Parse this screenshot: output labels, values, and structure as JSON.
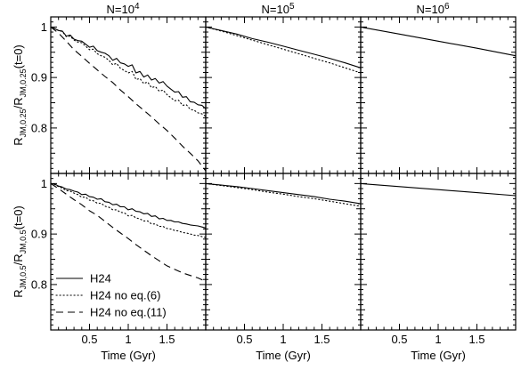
{
  "chart_data": {
    "type": "line",
    "columns": [
      {
        "title_base": "N=10",
        "title_exp": "4"
      },
      {
        "title_base": "N=10",
        "title_exp": "5"
      },
      {
        "title_base": "N=10",
        "title_exp": "6"
      }
    ],
    "rows": [
      {
        "ylabel": {
          "r": "R",
          "sub1": "JM,0.25",
          "slash": "/R",
          "sub2": "JM,0.25",
          "tail": "(t=0)"
        },
        "ylim": [
          0.71,
          1.02
        ],
        "yticks": [
          0.8,
          0.9,
          1
        ],
        "ytick_labels": [
          "0.8",
          "0.9",
          "1"
        ]
      },
      {
        "ylabel": {
          "r": "R",
          "sub1": "JM,0.5",
          "slash": "/R",
          "sub2": "JM,0.5",
          "tail": "(t=0)"
        },
        "ylim": [
          0.71,
          1.02
        ],
        "yticks": [
          0.8,
          0.9,
          1
        ],
        "ytick_labels": [
          "0.8",
          "0.9",
          "1"
        ]
      }
    ],
    "xlabel": "Time (Gyr)",
    "xlim": [
      0,
      2
    ],
    "xticks": [
      0.5,
      1,
      1.5
    ],
    "xtick_labels": [
      "0.5",
      "1",
      "1.5"
    ],
    "legend": {
      "placement": "lower-left",
      "panel": "row2-col1",
      "entries": [
        {
          "label": "H24",
          "style": "solid"
        },
        {
          "label": "H24 no eq.(6)",
          "style": "dotted"
        },
        {
          "label": "H24 no eq.(11)",
          "style": "dashed"
        }
      ]
    },
    "series_styles": {
      "solid": "",
      "dotted": "1.2,2.8",
      "dashed": "8,5"
    },
    "panels": [
      {
        "row": 0,
        "col": 0,
        "series": [
          {
            "style": "solid",
            "x": [
              0,
              0.05,
              0.1,
              0.15,
              0.2,
              0.25,
              0.3,
              0.35,
              0.4,
              0.45,
              0.5,
              0.55,
              0.6,
              0.65,
              0.7,
              0.75,
              0.8,
              0.85,
              0.9,
              0.95,
              1.0,
              1.05,
              1.1,
              1.15,
              1.2,
              1.25,
              1.3,
              1.35,
              1.4,
              1.45,
              1.5,
              1.55,
              1.6,
              1.65,
              1.7,
              1.75,
              1.8,
              1.85,
              1.9,
              1.95,
              2.0
            ],
            "y": [
              1.0,
              0.997,
              0.993,
              0.992,
              0.982,
              0.984,
              0.976,
              0.973,
              0.972,
              0.966,
              0.96,
              0.962,
              0.953,
              0.95,
              0.948,
              0.943,
              0.934,
              0.938,
              0.929,
              0.927,
              0.922,
              0.925,
              0.909,
              0.912,
              0.901,
              0.905,
              0.895,
              0.898,
              0.889,
              0.892,
              0.883,
              0.877,
              0.871,
              0.872,
              0.861,
              0.862,
              0.852,
              0.851,
              0.846,
              0.845,
              0.838
            ]
          },
          {
            "style": "dotted",
            "x": [
              0,
              0.05,
              0.1,
              0.15,
              0.2,
              0.25,
              0.3,
              0.35,
              0.4,
              0.45,
              0.5,
              0.55,
              0.6,
              0.65,
              0.7,
              0.75,
              0.8,
              0.85,
              0.9,
              0.95,
              1.0,
              1.05,
              1.1,
              1.15,
              1.2,
              1.25,
              1.3,
              1.35,
              1.4,
              1.45,
              1.5,
              1.55,
              1.6,
              1.65,
              1.7,
              1.75,
              1.8,
              1.85,
              1.9,
              1.95,
              2.0
            ],
            "y": [
              1.0,
              0.997,
              0.993,
              0.991,
              0.981,
              0.982,
              0.974,
              0.97,
              0.969,
              0.962,
              0.955,
              0.956,
              0.947,
              0.943,
              0.94,
              0.934,
              0.925,
              0.928,
              0.918,
              0.914,
              0.909,
              0.912,
              0.896,
              0.898,
              0.888,
              0.891,
              0.88,
              0.882,
              0.873,
              0.875,
              0.866,
              0.86,
              0.854,
              0.855,
              0.845,
              0.846,
              0.837,
              0.835,
              0.83,
              0.828,
              0.823
            ]
          },
          {
            "style": "dashed",
            "x": [
              0,
              0.1,
              0.2,
              0.3,
              0.4,
              0.5,
              0.6,
              0.7,
              0.8,
              0.9,
              1.0,
              1.1,
              1.2,
              1.3,
              1.4,
              1.5,
              1.6,
              1.7,
              1.8,
              1.9,
              2.0
            ],
            "y": [
              1.0,
              0.988,
              0.972,
              0.955,
              0.942,
              0.928,
              0.915,
              0.902,
              0.89,
              0.875,
              0.862,
              0.848,
              0.835,
              0.822,
              0.808,
              0.795,
              0.78,
              0.764,
              0.75,
              0.735,
              0.715
            ]
          }
        ]
      },
      {
        "row": 0,
        "col": 1,
        "series": [
          {
            "style": "solid",
            "x": [
              0,
              0.2,
              0.4,
              0.6,
              0.8,
              1.0,
              1.2,
              1.4,
              1.6,
              1.8,
              2.0
            ],
            "y": [
              1.0,
              0.993,
              0.986,
              0.977,
              0.97,
              0.962,
              0.954,
              0.946,
              0.938,
              0.929,
              0.919
            ]
          },
          {
            "style": "dotted",
            "x": [
              0,
              0.2,
              0.4,
              0.6,
              0.8,
              1.0,
              1.2,
              1.4,
              1.6,
              1.8,
              2.0
            ],
            "y": [
              1.0,
              0.992,
              0.983,
              0.974,
              0.965,
              0.956,
              0.947,
              0.938,
              0.929,
              0.919,
              0.909
            ]
          }
        ]
      },
      {
        "row": 0,
        "col": 2,
        "series": [
          {
            "style": "solid",
            "x": [
              0,
              0.5,
              1.0,
              1.5,
              2.0
            ],
            "y": [
              1.0,
              0.986,
              0.972,
              0.958,
              0.943
            ]
          }
        ]
      },
      {
        "row": 1,
        "col": 0,
        "series": [
          {
            "style": "solid",
            "x": [
              0,
              0.05,
              0.1,
              0.15,
              0.2,
              0.25,
              0.3,
              0.35,
              0.4,
              0.45,
              0.5,
              0.55,
              0.6,
              0.65,
              0.7,
              0.75,
              0.8,
              0.85,
              0.9,
              0.95,
              1.0,
              1.05,
              1.1,
              1.15,
              1.2,
              1.25,
              1.3,
              1.35,
              1.4,
              1.45,
              1.5,
              1.55,
              1.6,
              1.65,
              1.7,
              1.75,
              1.8,
              1.85,
              1.9,
              1.95,
              2.0
            ],
            "y": [
              1.0,
              0.999,
              0.995,
              0.993,
              0.989,
              0.988,
              0.985,
              0.983,
              0.978,
              0.979,
              0.974,
              0.973,
              0.969,
              0.97,
              0.964,
              0.963,
              0.958,
              0.959,
              0.954,
              0.954,
              0.948,
              0.95,
              0.945,
              0.944,
              0.94,
              0.941,
              0.935,
              0.936,
              0.93,
              0.931,
              0.927,
              0.927,
              0.924,
              0.924,
              0.921,
              0.92,
              0.918,
              0.917,
              0.916,
              0.914,
              0.912
            ]
          },
          {
            "style": "dotted",
            "x": [
              0,
              0.05,
              0.1,
              0.15,
              0.2,
              0.25,
              0.3,
              0.35,
              0.4,
              0.45,
              0.5,
              0.55,
              0.6,
              0.65,
              0.7,
              0.75,
              0.8,
              0.85,
              0.9,
              0.95,
              1.0,
              1.05,
              1.1,
              1.15,
              1.2,
              1.25,
              1.3,
              1.35,
              1.4,
              1.45,
              1.5,
              1.55,
              1.6,
              1.65,
              1.7,
              1.75,
              1.8,
              1.85,
              1.9,
              1.95,
              2.0
            ],
            "y": [
              1.0,
              0.998,
              0.994,
              0.991,
              0.986,
              0.985,
              0.981,
              0.978,
              0.973,
              0.973,
              0.967,
              0.966,
              0.961,
              0.961,
              0.955,
              0.953,
              0.948,
              0.948,
              0.943,
              0.942,
              0.936,
              0.937,
              0.932,
              0.93,
              0.926,
              0.926,
              0.92,
              0.92,
              0.915,
              0.915,
              0.911,
              0.91,
              0.907,
              0.906,
              0.903,
              0.902,
              0.9,
              0.898,
              0.897,
              0.895,
              0.893
            ]
          },
          {
            "style": "dashed",
            "x": [
              0,
              0.1,
              0.2,
              0.3,
              0.4,
              0.5,
              0.6,
              0.7,
              0.8,
              0.9,
              1.0,
              1.1,
              1.2,
              1.3,
              1.4,
              1.5,
              1.6,
              1.7,
              1.8,
              1.9,
              2.0
            ],
            "y": [
              1.0,
              0.99,
              0.979,
              0.968,
              0.958,
              0.946,
              0.937,
              0.925,
              0.913,
              0.902,
              0.891,
              0.879,
              0.868,
              0.857,
              0.847,
              0.837,
              0.83,
              0.823,
              0.818,
              0.813,
              0.806
            ]
          }
        ]
      },
      {
        "row": 1,
        "col": 1,
        "series": [
          {
            "style": "solid",
            "x": [
              0,
              0.2,
              0.4,
              0.6,
              0.8,
              1.0,
              1.2,
              1.4,
              1.6,
              1.8,
              2.0
            ],
            "y": [
              1.0,
              0.997,
              0.994,
              0.99,
              0.986,
              0.982,
              0.978,
              0.974,
              0.969,
              0.965,
              0.96
            ]
          },
          {
            "style": "dotted",
            "x": [
              0,
              0.2,
              0.4,
              0.6,
              0.8,
              1.0,
              1.2,
              1.4,
              1.6,
              1.8,
              2.0
            ],
            "y": [
              1.0,
              0.996,
              0.992,
              0.988,
              0.983,
              0.979,
              0.974,
              0.97,
              0.965,
              0.96,
              0.955
            ]
          }
        ]
      },
      {
        "row": 1,
        "col": 2,
        "series": [
          {
            "style": "solid",
            "x": [
              0,
              0.5,
              1.0,
              1.5,
              2.0
            ],
            "y": [
              1.0,
              0.994,
              0.988,
              0.982,
              0.976
            ]
          }
        ]
      }
    ]
  }
}
